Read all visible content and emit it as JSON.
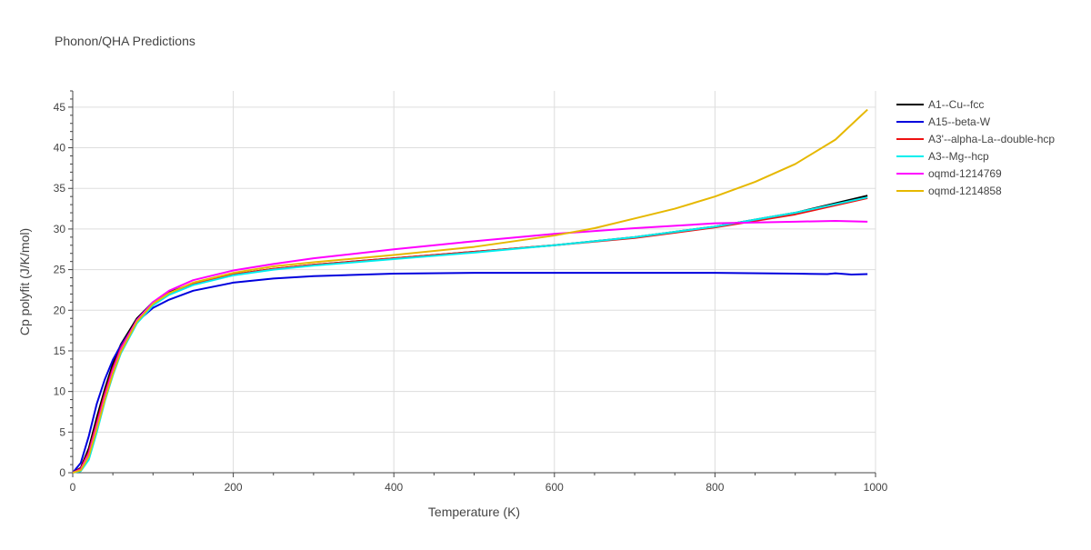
{
  "chart_data": {
    "type": "line",
    "title": "Phonon/QHA Predictions",
    "xlabel": "Temperature (K)",
    "ylabel": "Cp polyfit (J/K/mol)",
    "xlim": [
      0,
      1000
    ],
    "ylim": [
      0,
      47
    ],
    "xticks": [
      0,
      200,
      400,
      600,
      800,
      1000
    ],
    "yticks": [
      0,
      5,
      10,
      15,
      20,
      25,
      30,
      35,
      40,
      45
    ],
    "grid": true,
    "legend_position": "top-right",
    "series": [
      {
        "name": "A1--Cu--fcc",
        "color": "#000000",
        "x": [
          0,
          10,
          20,
          30,
          40,
          50,
          60,
          80,
          100,
          120,
          150,
          200,
          250,
          300,
          400,
          500,
          600,
          700,
          800,
          900,
          990
        ],
        "y": [
          0,
          0.6,
          3.0,
          6.8,
          10.3,
          13.4,
          15.8,
          19.0,
          21.0,
          22.2,
          23.3,
          24.4,
          25.1,
          25.6,
          26.4,
          27.2,
          28.0,
          29.0,
          30.3,
          32.0,
          34.1
        ]
      },
      {
        "name": "A15--beta-W",
        "color": "#0000dd",
        "x": [
          0,
          10,
          20,
          30,
          40,
          50,
          60,
          80,
          100,
          120,
          150,
          200,
          250,
          300,
          400,
          500,
          600,
          700,
          800,
          900,
          940,
          950,
          970,
          990
        ],
        "y": [
          0,
          1.2,
          4.5,
          8.5,
          11.5,
          13.9,
          15.7,
          18.6,
          20.3,
          21.3,
          22.4,
          23.4,
          23.9,
          24.2,
          24.5,
          24.6,
          24.6,
          24.6,
          24.6,
          24.5,
          24.45,
          24.55,
          24.4,
          24.45
        ]
      },
      {
        "name": "A3'--alpha-La--double-hcp",
        "color": "#ee1111",
        "x": [
          0,
          10,
          20,
          30,
          40,
          50,
          60,
          80,
          100,
          120,
          150,
          200,
          250,
          300,
          400,
          500,
          600,
          700,
          800,
          900,
          990
        ],
        "y": [
          0,
          0.5,
          2.6,
          6.2,
          9.8,
          12.9,
          15.4,
          18.8,
          20.9,
          22.1,
          23.3,
          24.4,
          25.1,
          25.6,
          26.4,
          27.2,
          28.0,
          28.9,
          30.2,
          31.8,
          33.8
        ]
      },
      {
        "name": "A3--Mg--hcp",
        "color": "#00eeee",
        "x": [
          0,
          10,
          20,
          30,
          40,
          50,
          60,
          80,
          100,
          120,
          150,
          200,
          250,
          300,
          400,
          500,
          600,
          700,
          800,
          900,
          990
        ],
        "y": [
          0,
          0.2,
          1.6,
          5.0,
          8.8,
          12.0,
          14.7,
          18.4,
          20.6,
          21.9,
          23.1,
          24.3,
          25.0,
          25.5,
          26.3,
          27.1,
          28.0,
          29.0,
          30.3,
          32.0,
          33.9
        ]
      },
      {
        "name": "oqmd-1214769",
        "color": "#ff00ff",
        "x": [
          0,
          10,
          20,
          30,
          40,
          50,
          60,
          80,
          100,
          120,
          150,
          200,
          250,
          300,
          400,
          500,
          600,
          700,
          800,
          900,
          950,
          990
        ],
        "y": [
          0,
          0.4,
          2.3,
          5.8,
          9.4,
          12.6,
          15.2,
          18.8,
          21.0,
          22.4,
          23.7,
          24.9,
          25.7,
          26.4,
          27.5,
          28.5,
          29.4,
          30.1,
          30.7,
          30.9,
          31.0,
          30.9
        ]
      },
      {
        "name": "oqmd-1214858",
        "color": "#e6b800",
        "x": [
          0,
          10,
          20,
          30,
          40,
          50,
          60,
          80,
          100,
          120,
          150,
          200,
          250,
          300,
          400,
          500,
          600,
          650,
          700,
          750,
          800,
          850,
          900,
          950,
          990
        ],
        "y": [
          0,
          0.3,
          2.0,
          5.4,
          9.0,
          12.2,
          14.9,
          18.6,
          20.8,
          22.1,
          23.4,
          24.6,
          25.4,
          25.9,
          26.8,
          27.8,
          29.2,
          30.1,
          31.3,
          32.5,
          34.0,
          35.8,
          38.0,
          41.0,
          44.7
        ]
      }
    ]
  }
}
